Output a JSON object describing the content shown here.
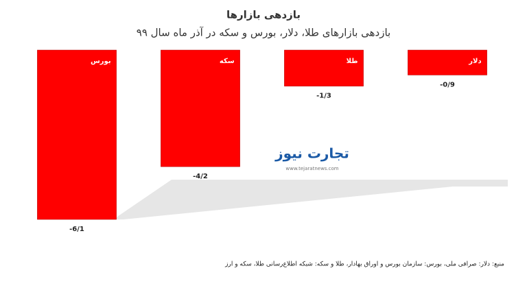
{
  "chart_data": {
    "type": "bar",
    "title": "بازدهی بازارها",
    "subtitle": "بازدهی بازارهای طلا، دلار، بورس و سکه در آذر ماه سال ۹۹",
    "categories": [
      "بورس",
      "سکه",
      "طلا",
      "دلار"
    ],
    "values": [
      -6.1,
      -4.2,
      -1.3,
      -0.9
    ],
    "value_labels": [
      "-6/1",
      "-4/2",
      "-1/3",
      "-0/9"
    ],
    "color": "#ff0000",
    "source": "منبع: دلار: صرافی ملی، بورس: سازمان بورس و اوراق بهادار، طلا و سکه: شبکه اطلاع‌رسانی طلا، سکه و ارز",
    "logo": {
      "text": "تجارت نیوز",
      "url": "www.tejaratnews.com"
    }
  }
}
